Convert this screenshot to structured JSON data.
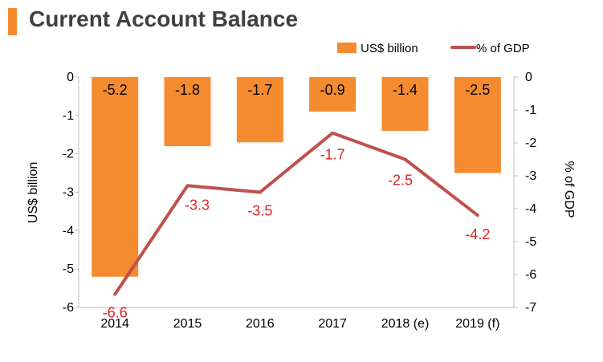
{
  "title": "Current Account Balance",
  "colors": {
    "bar": "#f58b2f",
    "line": "#c0504d",
    "line_label": "#e02020",
    "axis": "#bfbfbf",
    "text": "#000000",
    "title_accent": "#f58b2f"
  },
  "chart_data": {
    "type": "bar",
    "title": "Current Account Balance",
    "categories": [
      "2014",
      "2015",
      "2016",
      "2017",
      "2018 (e)",
      "2019 (f)"
    ],
    "series": [
      {
        "name": "US$ billion",
        "type": "bar",
        "axis": "left",
        "values": [
          -5.2,
          -1.8,
          -1.7,
          -0.9,
          -1.4,
          -2.5
        ],
        "labels": [
          "-5.2",
          "-1.8",
          "-1.7",
          "-0.9",
          "-1.4",
          "-2.5"
        ]
      },
      {
        "name": "% of GDP",
        "type": "line",
        "axis": "right",
        "values": [
          -6.6,
          -3.3,
          -3.5,
          -1.7,
          -2.5,
          -4.2
        ],
        "labels": [
          "-6.6",
          "-3.3",
          "-3.5",
          "-1.7",
          "-2.5",
          "-4.2"
        ]
      }
    ],
    "ylabel": "US$ billion",
    "ylim": [
      -6,
      0
    ],
    "yticks": [
      "0",
      "-1",
      "-2",
      "-3",
      "-4",
      "-5",
      "-6"
    ],
    "y2label": "% of GDP",
    "y2lim": [
      -7,
      0
    ],
    "y2ticks": [
      "0",
      "-1",
      "-2",
      "-3",
      "-4",
      "-5",
      "-6",
      "-7"
    ],
    "legend": "top-right",
    "grid": false
  }
}
